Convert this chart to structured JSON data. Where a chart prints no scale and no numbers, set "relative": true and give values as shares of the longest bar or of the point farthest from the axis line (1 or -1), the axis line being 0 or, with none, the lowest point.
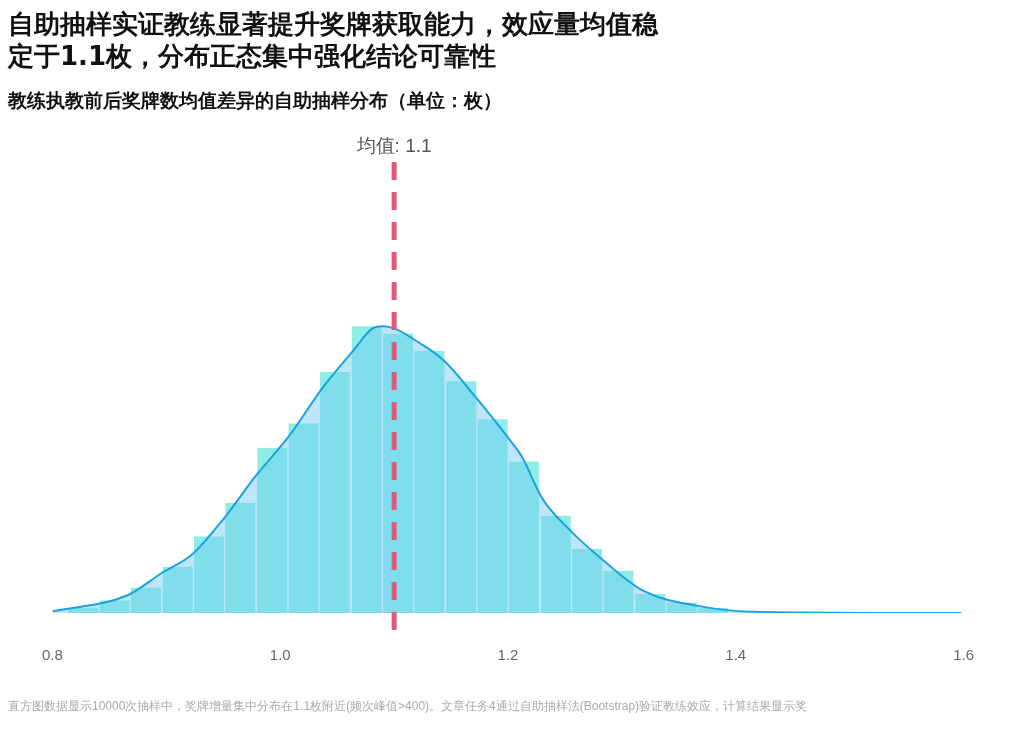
{
  "chart_data": {
    "type": "histogram",
    "title": "自助抽样实证教练显著提升奖牌获取能力，效应量均值稳定于1.1枚，分布正态集中强化结论可靠性",
    "subtitle": "教练执教前后奖牌数均值差异的自助抽样分布（单位：枚）",
    "relative": true,
    "series": [
      {
        "type": "histogram",
        "color": "#8eeee6",
        "bins": [
          0.813,
          0.841,
          0.868,
          0.896,
          0.924,
          0.951,
          0.979,
          1.007,
          1.034,
          1.062,
          1.09,
          1.117,
          1.145,
          1.173,
          1.2,
          1.228,
          1.256,
          1.283,
          1.311,
          1.339,
          1.366,
          1.394
        ],
        "values": [
          0.018,
          0.044,
          0.089,
          0.16,
          0.267,
          0.384,
          0.576,
          0.661,
          0.84,
          1.0,
          0.974,
          0.914,
          0.808,
          0.675,
          0.528,
          0.339,
          0.224,
          0.146,
          0.066,
          0.037,
          0.017
        ]
      },
      {
        "type": "area",
        "color": "#1aa3dd",
        "x": [
          0.8,
          0.866,
          0.897,
          0.922,
          0.951,
          0.978,
          1.008,
          1.037,
          1.064,
          1.081,
          1.09,
          1.126,
          1.145,
          1.17,
          1.2,
          1.212,
          1.23,
          1.253,
          1.282,
          1.319,
          1.368,
          1.417,
          1.598
        ],
        "values": [
          0.006,
          0.062,
          0.142,
          0.202,
          0.332,
          0.475,
          0.618,
          0.784,
          0.914,
          0.992,
          1.0,
          0.932,
          0.875,
          0.76,
          0.611,
          0.546,
          0.4,
          0.294,
          0.189,
          0.077,
          0.024,
          0.004,
          0
        ]
      }
    ],
    "xlim": [
      0.8,
      1.6
    ],
    "xticks": [
      0.8,
      {
        "value": 1,
        "label": "1.0"
      },
      1.2,
      1.4,
      1.6
    ],
    "tick_labels": "x",
    "grid": false,
    "legend": false,
    "ref_lines": [
      {
        "axis": "x",
        "value": 1.1,
        "label": "均值: 1.1",
        "color": "#e05a7a",
        "line_style": "dashed"
      }
    ],
    "annotations": [
      "直方图数据显示10000次抽样中，奖牌增量集中分布在1.1枚附近(频次峰值>400)。文章任务4通过自助抽样法(Bootstrap)验证教练效应，计算结果显示奖"
    ]
  }
}
